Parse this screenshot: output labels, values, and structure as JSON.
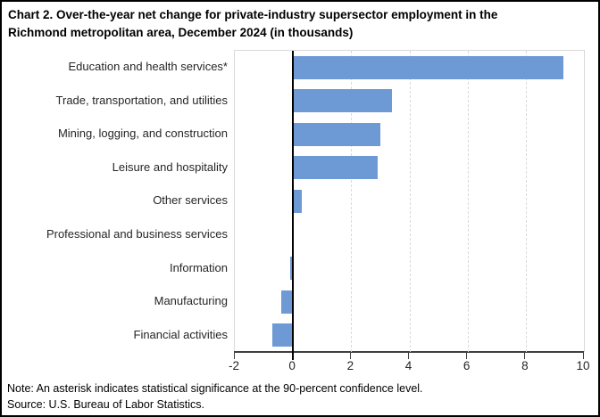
{
  "figure": {
    "title_lines": [
      "Chart 2. Over-the-year net change for private-industry supersector employment in the",
      "Richmond metropolitan area, December 2024 (in thousands)"
    ],
    "note": "Note: An asterisk indicates statistical significance at the 90-percent confidence level.",
    "source": "Source: U.S. Bureau of Labor Statistics."
  },
  "colors": {
    "bar": "#6D99D5",
    "gridline": "#D9D9D9",
    "zero_line": "#000000",
    "axis": "#404040",
    "plot_border": "#D9D9D9",
    "frame_border": "#000000",
    "background": "#FFFFFF"
  },
  "chart_data": {
    "type": "bar",
    "orientation": "horizontal",
    "title": "Chart 2. Over-the-year net change for private-industry supersector employment in the Richmond metropolitan area, December 2024 (in thousands)",
    "units": "thousands",
    "categories": [
      "Education and health services*",
      "Trade, transportation, and utilities",
      "Mining, logging, and construction",
      "Leisure and hospitality",
      "Other services",
      "Professional and business services",
      "Information",
      "Manufacturing",
      "Financial activities"
    ],
    "values": [
      9.3,
      3.4,
      3.0,
      2.9,
      0.3,
      0.0,
      -0.1,
      -0.4,
      -0.7
    ],
    "xlabel": "",
    "ylabel": "",
    "xlim": [
      -2,
      10
    ],
    "xticks": [
      -2,
      0,
      2,
      4,
      6,
      8,
      10
    ],
    "grid": "vertical-dashed",
    "legend": "none"
  }
}
